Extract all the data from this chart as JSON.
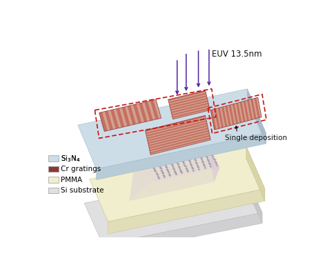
{
  "background_color": "#ffffff",
  "si3n4_color_top": "#ccdde8",
  "si3n4_color_front": "#b8ccd8",
  "si3n4_color_right": "#aabbcc",
  "cr_base_color": "#8B3838",
  "cr_stripe_color": "#c47060",
  "cr_bg_color": "#d4a090",
  "pmma_color_top": "#f0eecc",
  "pmma_color_front": "#e0ddb8",
  "pmma_color_right": "#d8d4a8",
  "si_color_top": "#e0e0e2",
  "si_color_front": "#d0d0d2",
  "si_color_right": "#c8c8ca",
  "pillar_color_front": "#b8ccd8",
  "pillar_color_left": "#aabbcc",
  "pillar_color_right": "#aabbcc",
  "cone_color": "#c8a8e0",
  "dot_color": "#9090a0",
  "arrow_color": "#5020a0",
  "dash_color": "#cc1010",
  "euv_label": "EUV 13.5nm",
  "single_dep_label": "Single deposition",
  "legend_items": [
    {
      "label": "Si$_3$N$_4$",
      "color": "#ccdde8"
    },
    {
      "label": "Cr gratings",
      "color": "#8B3838"
    },
    {
      "label": "PMMA",
      "color": "#f0eecc"
    },
    {
      "label": "Si substrate",
      "color": "#e0e0e2"
    }
  ]
}
